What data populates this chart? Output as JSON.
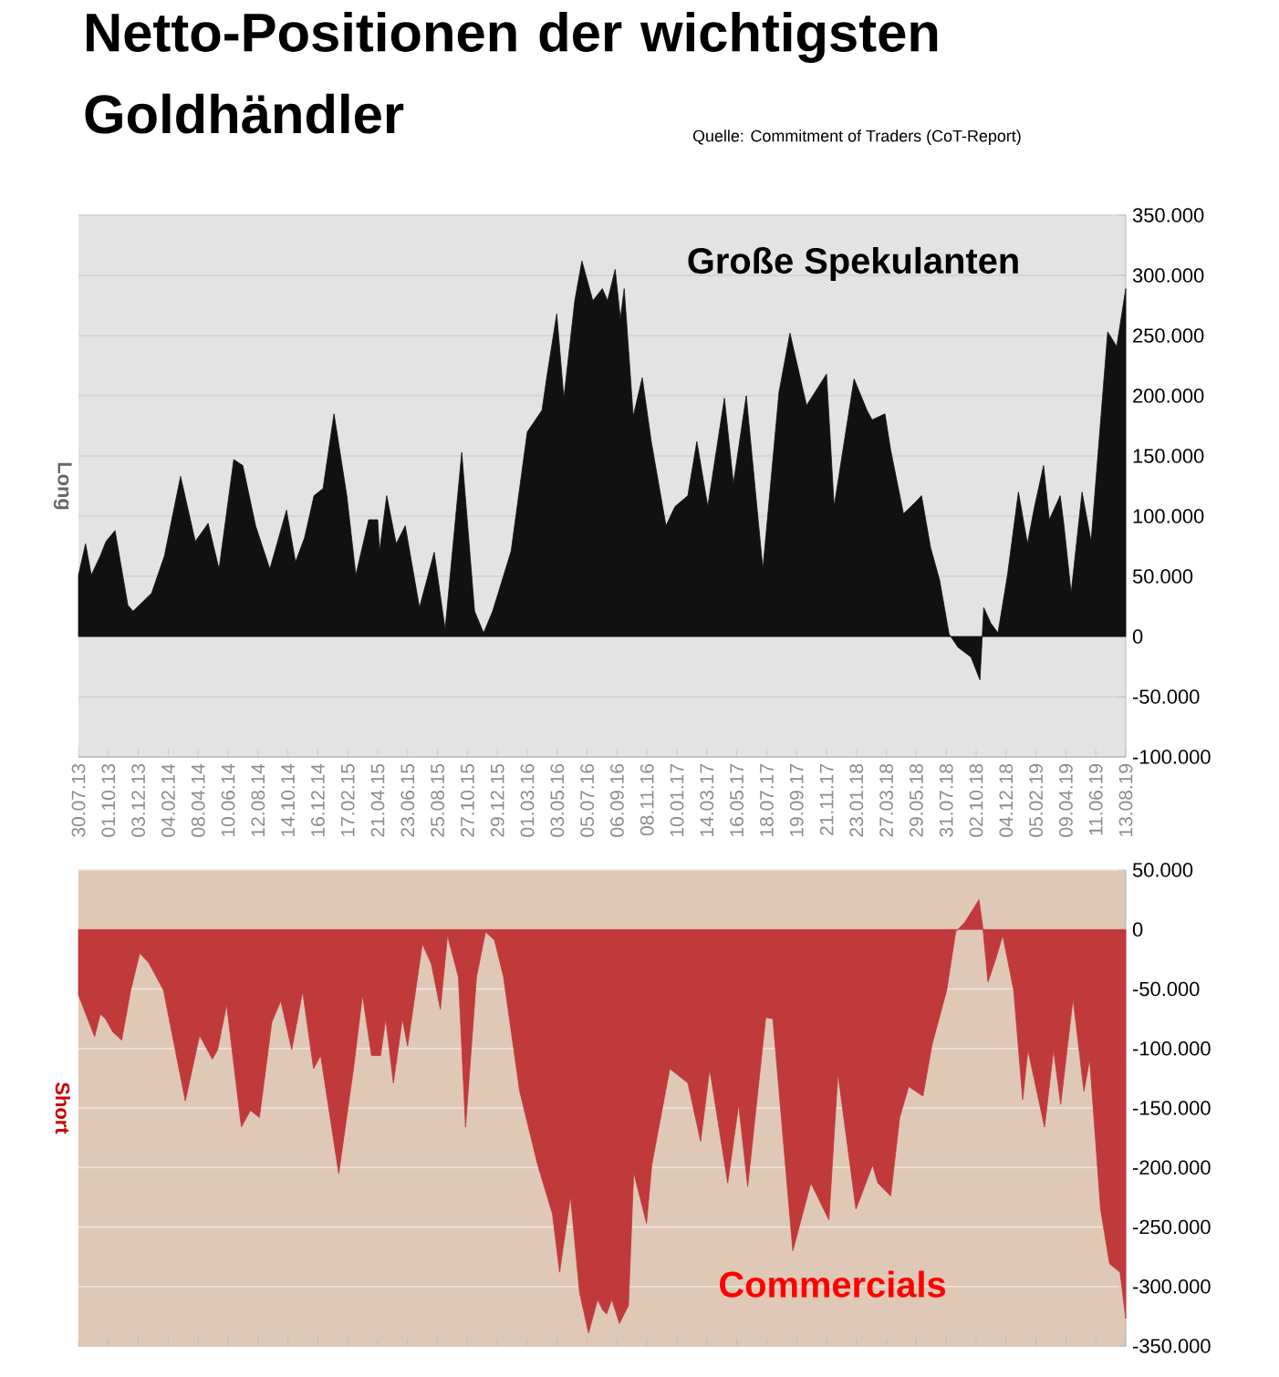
{
  "chart_data": [
    {
      "type": "area",
      "title": "Netto-Positionen der wichtigsten Goldhändler",
      "ylabel": "Long",
      "annotations": [
        "Quelle: Commitment of Traders (CoT-Report)"
      ],
      "grid": "y",
      "xlim": [
        "2013-07-30",
        "2019-08-13"
      ],
      "ylim": [
        -100000,
        350000
      ],
      "yticks": [
        {
          "value": -100000,
          "label": "-100.000"
        },
        {
          "value": -50000,
          "label": "-50.000"
        },
        0,
        {
          "value": 50000,
          "label": "50.000"
        },
        {
          "value": 100000,
          "label": "100.000"
        },
        {
          "value": 150000,
          "label": "150.000"
        },
        {
          "value": 200000,
          "label": "200.000"
        },
        {
          "value": 250000,
          "label": "250.000"
        },
        {
          "value": 300000,
          "label": "300.000"
        },
        {
          "value": 350000,
          "label": "350.000"
        }
      ],
      "xticks": [
        {
          "value": "2013-07-30",
          "label": "30.07.13"
        },
        {
          "value": "2013-10-01",
          "label": "01.10.13"
        },
        {
          "value": "2013-12-03",
          "label": "03.12.13"
        },
        {
          "value": "2014-02-04",
          "label": "04.02.14"
        },
        {
          "value": "2014-04-08",
          "label": "08.04.14"
        },
        {
          "value": "2014-06-10",
          "label": "10.06.14"
        },
        {
          "value": "2014-08-12",
          "label": "12.08.14"
        },
        {
          "value": "2014-10-14",
          "label": "14.10.14"
        },
        {
          "value": "2014-12-16",
          "label": "16.12.14"
        },
        {
          "value": "2015-02-17",
          "label": "17.02.15"
        },
        {
          "value": "2015-04-21",
          "label": "21.04.15"
        },
        {
          "value": "2015-06-23",
          "label": "23.06.15"
        },
        {
          "value": "2015-08-25",
          "label": "25.08.15"
        },
        {
          "value": "2015-10-27",
          "label": "27.10.15"
        },
        {
          "value": "2015-12-29",
          "label": "29.12.15"
        },
        {
          "value": "2016-03-01",
          "label": "01.03.16"
        },
        {
          "value": "2016-05-03",
          "label": "03.05.16"
        },
        {
          "value": "2016-07-05",
          "label": "05.07.16"
        },
        {
          "value": "2016-09-06",
          "label": "06.09.16"
        },
        {
          "value": "2016-11-08",
          "label": "08.11.16"
        },
        {
          "value": "2017-01-10",
          "label": "10.01.17"
        },
        {
          "value": "2017-03-14",
          "label": "14.03.17"
        },
        {
          "value": "2017-05-16",
          "label": "16.05.17"
        },
        {
          "value": "2017-07-18",
          "label": "18.07.17"
        },
        {
          "value": "2017-09-19",
          "label": "19.09.17"
        },
        {
          "value": "2017-11-21",
          "label": "21.11.17"
        },
        {
          "value": "2018-01-23",
          "label": "23.01.18"
        },
        {
          "value": "2018-03-27",
          "label": "27.03.18"
        },
        {
          "value": "2018-05-29",
          "label": "29.05.18"
        },
        {
          "value": "2018-07-31",
          "label": "31.07.18"
        },
        {
          "value": "2018-10-02",
          "label": "02.10.18"
        },
        {
          "value": "2018-12-04",
          "label": "04.12.18"
        },
        {
          "value": "2019-02-05",
          "label": "05.02.19"
        },
        {
          "value": "2019-04-09",
          "label": "09.04.19"
        },
        {
          "value": "2019-06-11",
          "label": "11.06.19"
        },
        {
          "value": "2019-08-13",
          "label": "13.08.19"
        }
      ],
      "series": [
        {
          "name": "Große Spekulanten",
          "color": "#111111",
          "x": [
            "2013-07-30",
            "2013-08-14",
            "2013-08-26",
            "2013-09-14",
            "2013-09-26",
            "2013-10-15",
            "2013-11-11",
            "2013-11-22",
            "2013-12-31",
            "2014-01-27",
            "2014-03-02",
            "2014-04-02",
            "2014-04-29",
            "2014-05-22",
            "2014-06-22",
            "2014-07-11",
            "2014-08-07",
            "2014-09-06",
            "2014-10-11",
            "2014-10-30",
            "2014-11-18",
            "2014-12-08",
            "2014-12-27",
            "2015-01-19",
            "2015-02-15",
            "2015-03-06",
            "2015-04-02",
            "2015-04-21",
            "2015-04-25",
            "2015-05-10",
            "2015-05-30",
            "2015-06-18",
            "2015-07-18",
            "2015-08-18",
            "2015-09-10",
            "2015-10-15",
            "2015-11-11",
            "2015-11-30",
            "2015-12-19",
            "2016-01-27",
            "2016-03-01",
            "2016-04-01",
            "2016-04-12",
            "2016-05-02",
            "2016-05-17",
            "2016-06-09",
            "2016-06-24",
            "2016-07-17",
            "2016-08-06",
            "2016-08-17",
            "2016-09-02",
            "2016-09-13",
            "2016-09-21",
            "2016-10-10",
            "2016-10-29",
            "2016-11-17",
            "2016-12-18",
            "2017-01-06",
            "2017-02-02",
            "2017-02-21",
            "2017-03-16",
            "2017-04-20",
            "2017-05-09",
            "2017-06-05",
            "2017-07-10",
            "2017-08-13",
            "2017-09-05",
            "2017-10-10",
            "2017-11-21",
            "2017-12-07",
            "2018-01-18",
            "2018-02-14",
            "2018-02-25",
            "2018-03-24",
            "2018-04-05",
            "2018-05-02",
            "2018-05-28",
            "2018-06-09",
            "2018-06-28",
            "2018-07-17",
            "2018-08-06",
            "2018-08-25",
            "2018-09-21",
            "2018-10-10",
            "2018-10-18",
            "2018-11-02",
            "2018-11-17",
            "2018-12-07",
            "2018-12-30",
            "2019-01-18",
            "2019-02-02",
            "2019-02-21",
            "2019-03-05",
            "2019-03-28",
            "2019-04-05",
            "2019-04-20",
            "2019-05-13",
            "2019-06-01",
            "2019-07-06",
            "2019-07-25",
            "2019-08-13"
          ],
          "values": [
            51000,
            77000,
            51000,
            67000,
            79000,
            88000,
            26000,
            21000,
            36000,
            67000,
            133000,
            79000,
            94000,
            56000,
            147000,
            142000,
            92000,
            56000,
            105000,
            62000,
            82000,
            117000,
            123000,
            185000,
            117000,
            51000,
            97000,
            97000,
            71000,
            117000,
            77000,
            92000,
            24000,
            70000,
            6000,
            153000,
            21000,
            3000,
            21000,
            71000,
            170000,
            188000,
            218000,
            268000,
            198000,
            279000,
            312000,
            279000,
            289000,
            279000,
            305000,
            264000,
            289000,
            183000,
            215000,
            162000,
            92000,
            108000,
            117000,
            162000,
            108000,
            198000,
            127000,
            200000,
            56000,
            203000,
            252000,
            192000,
            218000,
            108000,
            214000,
            188000,
            180000,
            185000,
            155000,
            102000,
            112000,
            117000,
            74000,
            47000,
            2000,
            -9000,
            -17000,
            -36000,
            24000,
            11000,
            3000,
            51000,
            120000,
            77000,
            108000,
            142000,
            97000,
            117000,
            92000,
            36000,
            120000,
            79000,
            253000,
            241000,
            289000
          ]
        }
      ]
    },
    {
      "type": "area",
      "ylabel": "Short",
      "grid": "y",
      "tick_labels": "y",
      "xlim": [
        "2013-07-30",
        "2019-08-13"
      ],
      "ylim": [
        -350000,
        50000
      ],
      "xticks": [
        {
          "value": "2013-07-30",
          "label": null
        },
        {
          "value": "2013-10-01",
          "label": null
        },
        {
          "value": "2013-12-03",
          "label": null
        },
        {
          "value": "2014-02-04",
          "label": null
        },
        {
          "value": "2014-04-08",
          "label": null
        },
        {
          "value": "2014-06-10",
          "label": null
        },
        {
          "value": "2014-08-12",
          "label": null
        },
        {
          "value": "2014-10-14",
          "label": null
        },
        {
          "value": "2014-12-16",
          "label": null
        },
        {
          "value": "2015-02-17",
          "label": null
        },
        {
          "value": "2015-04-21",
          "label": null
        },
        {
          "value": "2015-06-23",
          "label": null
        },
        {
          "value": "2015-08-25",
          "label": null
        },
        {
          "value": "2015-10-27",
          "label": null
        },
        {
          "value": "2015-12-29",
          "label": null
        },
        {
          "value": "2016-03-01",
          "label": null
        },
        {
          "value": "2016-05-03",
          "label": null
        },
        {
          "value": "2016-07-05",
          "label": null
        },
        {
          "value": "2016-09-06",
          "label": null
        },
        {
          "value": "2016-11-08",
          "label": null
        },
        {
          "value": "2017-01-10",
          "label": null
        },
        {
          "value": "2017-03-14",
          "label": null
        },
        {
          "value": "2017-05-16",
          "label": null
        },
        {
          "value": "2017-07-18",
          "label": null
        },
        {
          "value": "2017-09-19",
          "label": null
        },
        {
          "value": "2017-11-21",
          "label": null
        },
        {
          "value": "2018-01-23",
          "label": null
        },
        {
          "value": "2018-03-27",
          "label": null
        },
        {
          "value": "2018-05-29",
          "label": null
        },
        {
          "value": "2018-07-31",
          "label": null
        },
        {
          "value": "2018-10-02",
          "label": null
        },
        {
          "value": "2018-12-04",
          "label": null
        },
        {
          "value": "2019-02-05",
          "label": null
        },
        {
          "value": "2019-04-09",
          "label": null
        },
        {
          "value": "2019-06-11",
          "label": null
        },
        {
          "value": "2019-08-13",
          "label": null
        }
      ],
      "yticks": [
        {
          "value": -350000,
          "label": "-350.000"
        },
        {
          "value": -300000,
          "label": "-300.000"
        },
        {
          "value": -250000,
          "label": "-250.000"
        },
        {
          "value": -200000,
          "label": "-200.000"
        },
        {
          "value": -150000,
          "label": "-150.000"
        },
        {
          "value": -100000,
          "label": "-100.000"
        },
        {
          "value": -50000,
          "label": "-50.000"
        },
        0,
        {
          "value": 50000,
          "label": "50.000"
        }
      ],
      "series": [
        {
          "name": "Commercials",
          "color": "#c0393b",
          "x": [
            "2013-07-30",
            "2013-09-02",
            "2013-09-14",
            "2013-09-25",
            "2013-10-10",
            "2013-10-29",
            "2013-11-17",
            "2013-12-06",
            "2013-12-25",
            "2014-01-25",
            "2014-03-12",
            "2014-04-11",
            "2014-05-08",
            "2014-05-19",
            "2014-06-07",
            "2014-07-08",
            "2014-07-27",
            "2014-08-15",
            "2014-09-10",
            "2014-09-29",
            "2014-10-22",
            "2014-11-14",
            "2014-12-07",
            "2014-12-22",
            "2015-01-29",
            "2015-03-01",
            "2015-03-20",
            "2015-04-08",
            "2015-04-27",
            "2015-05-08",
            "2015-05-24",
            "2015-06-12",
            "2015-06-23",
            "2015-07-24",
            "2015-08-12",
            "2015-08-31",
            "2015-09-15",
            "2015-10-08",
            "2015-10-23",
            "2015-11-15",
            "2015-12-04",
            "2015-12-23",
            "2016-01-11",
            "2016-02-14",
            "2016-03-23",
            "2016-04-23",
            "2016-05-08",
            "2016-05-31",
            "2016-06-19",
            "2016-07-08",
            "2016-07-27",
            "2016-08-07",
            "2016-08-15",
            "2016-08-26",
            "2016-09-11",
            "2016-09-30",
            "2016-10-11",
            "2016-11-07",
            "2016-11-18",
            "2016-12-26",
            "2017-02-02",
            "2017-03-01",
            "2017-03-20",
            "2017-04-27",
            "2017-05-20",
            "2017-06-08",
            "2017-07-16",
            "2017-07-31",
            "2017-09-11",
            "2017-10-19",
            "2017-11-26",
            "2017-12-15",
            "2018-01-22",
            "2018-02-26",
            "2018-03-09",
            "2018-04-05",
            "2018-04-24",
            "2018-05-13",
            "2018-06-12",
            "2018-07-01",
            "2018-08-01",
            "2018-08-20",
            "2018-09-08",
            "2018-10-08",
            "2018-10-16",
            "2018-10-27",
            "2018-11-12",
            "2018-11-27",
            "2018-12-20",
            "2019-01-08",
            "2019-01-19",
            "2019-02-23",
            "2019-03-14",
            "2019-03-29",
            "2019-04-24",
            "2019-05-17",
            "2019-05-29",
            "2019-06-21",
            "2019-07-10",
            "2019-08-01",
            "2019-08-13"
          ],
          "values": [
            -55000,
            -90000,
            -71000,
            -75000,
            -86000,
            -93000,
            -51000,
            -20000,
            -28000,
            -51000,
            -144000,
            -89000,
            -109000,
            -101000,
            -63000,
            -166000,
            -152000,
            -158000,
            -78000,
            -60000,
            -101000,
            -52000,
            -117000,
            -106000,
            -205000,
            -117000,
            -55000,
            -106000,
            -106000,
            -75000,
            -129000,
            -75000,
            -98000,
            -12000,
            -29000,
            -67000,
            -5000,
            -40000,
            -166000,
            -40000,
            -2000,
            -9000,
            -40000,
            -136000,
            -198000,
            -239000,
            -288000,
            -224000,
            -305000,
            -339000,
            -311000,
            -320000,
            -323000,
            -311000,
            -331000,
            -316000,
            -204000,
            -247000,
            -198000,
            -117000,
            -129000,
            -178000,
            -117000,
            -213000,
            -147000,
            -216000,
            -74000,
            -75000,
            -270000,
            -213000,
            -244000,
            -121000,
            -235000,
            -198000,
            -213000,
            -224000,
            -158000,
            -132000,
            -140000,
            -97000,
            -51000,
            -2000,
            6000,
            25000,
            2000,
            -44000,
            -25000,
            -5000,
            -51000,
            -143000,
            -101000,
            -166000,
            -101000,
            -147000,
            -58000,
            -136000,
            -109000,
            -235000,
            -281000,
            -288000,
            -327000
          ]
        }
      ]
    }
  ]
}
